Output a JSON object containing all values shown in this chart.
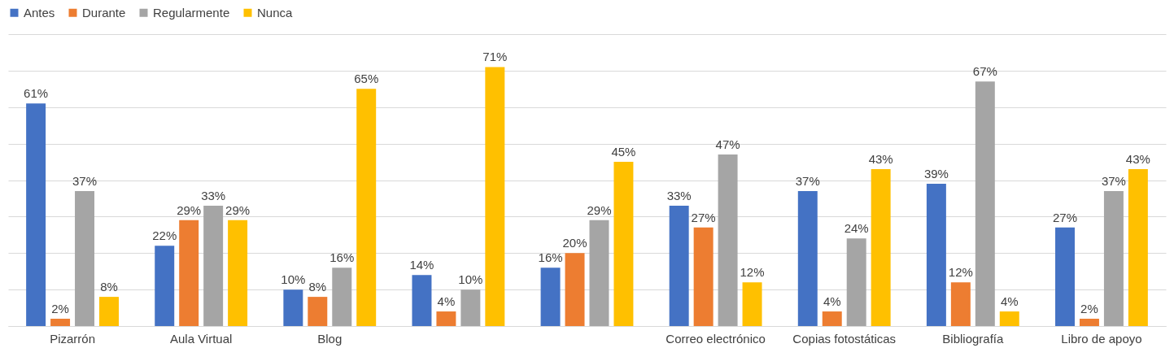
{
  "chart_data": {
    "type": "bar",
    "categories": [
      "Pizarrón",
      "Aula Virtual",
      "Blog",
      null,
      null,
      "Correo electrónico",
      "Copias fotostáticas",
      "Bibliografía",
      "Libro de apoyo"
    ],
    "series": [
      {
        "name": "Antes",
        "color": "#4472c4",
        "values": [
          61,
          22,
          10,
          14,
          16,
          33,
          37,
          39,
          27
        ],
        "value_labels": [
          "61%",
          "22%",
          "10%",
          "14%",
          "16%",
          "33%",
          "37%",
          "39%",
          "27%"
        ]
      },
      {
        "name": "Durante",
        "color": "#ed7d31",
        "values": [
          2,
          29,
          8,
          4,
          20,
          27,
          4,
          12,
          2
        ],
        "value_labels": [
          "2%",
          "29%",
          "8%",
          "4%",
          "20%",
          "27%",
          "4%",
          "12%",
          "2%"
        ]
      },
      {
        "name": "Regularmente",
        "color": "#a5a5a5",
        "values": [
          37,
          33,
          16,
          10,
          29,
          47,
          24,
          67,
          37
        ],
        "value_labels": [
          "37%",
          "33%",
          "16%",
          "10%",
          "29%",
          "47%",
          "24%",
          "67%",
          "37%"
        ]
      },
      {
        "name": "Nunca",
        "color": "#ffc000",
        "values": [
          8,
          29,
          65,
          71,
          45,
          12,
          43,
          4,
          43
        ],
        "value_labels": [
          "8%",
          "29%",
          "65%",
          "71%",
          "45%",
          "12%",
          "43%",
          "4%",
          "43%"
        ]
      }
    ],
    "ylim": [
      0,
      80
    ],
    "yticks": [
      {
        "value": 0,
        "label": null
      },
      {
        "value": 10,
        "label": null
      },
      {
        "value": 20,
        "label": null
      },
      {
        "value": 30,
        "label": null
      },
      {
        "value": 40,
        "label": null
      },
      {
        "value": 50,
        "label": null
      },
      {
        "value": 60,
        "label": null
      },
      {
        "value": 70,
        "label": null
      },
      {
        "value": 80,
        "label": null
      }
    ],
    "tick_labels": "x",
    "grid": "y",
    "legend": "top"
  }
}
